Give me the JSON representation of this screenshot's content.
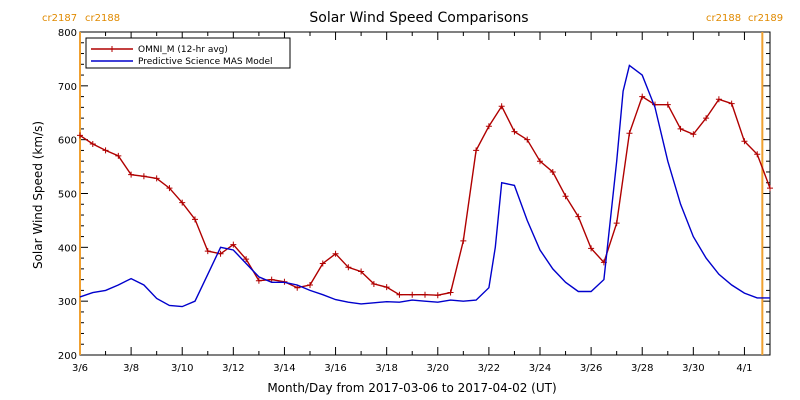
{
  "chart_data": {
    "type": "line",
    "title": "Solar Wind Speed Comparisons",
    "xlabel": "Month/Day from 2017-03-06 to 2017-04-02 (UT)",
    "ylabel": "Solar Wind Speed (km/s)",
    "xlim": [
      "2017-03-06",
      "2017-04-02"
    ],
    "ylim": [
      200,
      800
    ],
    "x_ticks": [
      "3/6",
      "3/8",
      "3/10",
      "3/12",
      "3/14",
      "3/16",
      "3/18",
      "3/20",
      "3/22",
      "3/24",
      "3/26",
      "3/28",
      "3/30",
      "4/1"
    ],
    "y_ticks": [
      200,
      300,
      400,
      500,
      600,
      700,
      800
    ],
    "legend_position": "top-left",
    "grid": false,
    "carrington_markers": [
      {
        "date": "2017-03-06",
        "label_left": "cr2187",
        "label_right": "cr2188",
        "side": "left"
      },
      {
        "date": "2017-04-01",
        "label_left": "cr2188",
        "label_right": "cr2189",
        "side": "right"
      }
    ],
    "series": [
      {
        "name": "OMNI_M (12-hr avg)",
        "color": "#b00000",
        "marker": "plus",
        "x": [
          "2017-03-06 00:00",
          "2017-03-06 12:00",
          "2017-03-07 00:00",
          "2017-03-07 12:00",
          "2017-03-08 00:00",
          "2017-03-08 12:00",
          "2017-03-09 00:00",
          "2017-03-09 12:00",
          "2017-03-10 00:00",
          "2017-03-10 12:00",
          "2017-03-11 00:00",
          "2017-03-11 12:00",
          "2017-03-12 00:00",
          "2017-03-12 12:00",
          "2017-03-13 00:00",
          "2017-03-13 12:00",
          "2017-03-14 00:00",
          "2017-03-14 12:00",
          "2017-03-15 00:00",
          "2017-03-15 12:00",
          "2017-03-16 00:00",
          "2017-03-16 12:00",
          "2017-03-17 00:00",
          "2017-03-17 12:00",
          "2017-03-18 00:00",
          "2017-03-18 12:00",
          "2017-03-19 00:00",
          "2017-03-19 12:00",
          "2017-03-20 00:00",
          "2017-03-20 12:00",
          "2017-03-21 00:00",
          "2017-03-21 12:00",
          "2017-03-22 00:00",
          "2017-03-22 12:00",
          "2017-03-23 00:00",
          "2017-03-23 12:00",
          "2017-03-24 00:00",
          "2017-03-24 12:00",
          "2017-03-25 00:00",
          "2017-03-25 12:00",
          "2017-03-26 00:00",
          "2017-03-26 12:00",
          "2017-03-27 00:00",
          "2017-03-27 12:00",
          "2017-03-28 00:00",
          "2017-03-28 12:00",
          "2017-03-29 00:00",
          "2017-03-29 12:00",
          "2017-03-30 00:00",
          "2017-03-30 12:00",
          "2017-03-31 00:00",
          "2017-03-31 12:00",
          "2017-04-01 00:00",
          "2017-04-01 12:00",
          "2017-04-02 00:00"
        ],
        "values": [
          608,
          592,
          580,
          570,
          535,
          532,
          528,
          510,
          483,
          452,
          393,
          388,
          405,
          378,
          338,
          340,
          336,
          325,
          330,
          370,
          388,
          363,
          355,
          332,
          326,
          312,
          312,
          312,
          311,
          316,
          412,
          580,
          625,
          662,
          615,
          600,
          560,
          540,
          495,
          457,
          398,
          372,
          445,
          612,
          680,
          665,
          665,
          620,
          610,
          640,
          675,
          667,
          597,
          573,
          510
        ]
      },
      {
        "name": "Predictive Science MAS Model",
        "color": "#0000cc",
        "marker": "none",
        "x": [
          "2017-03-06 00:00",
          "2017-03-06 12:00",
          "2017-03-07 00:00",
          "2017-03-07 12:00",
          "2017-03-08 00:00",
          "2017-03-08 12:00",
          "2017-03-09 00:00",
          "2017-03-09 12:00",
          "2017-03-10 00:00",
          "2017-03-10 12:00",
          "2017-03-11 00:00",
          "2017-03-11 12:00",
          "2017-03-12 00:00",
          "2017-03-12 12:00",
          "2017-03-13 00:00",
          "2017-03-13 12:00",
          "2017-03-14 00:00",
          "2017-03-14 12:00",
          "2017-03-15 00:00",
          "2017-03-15 12:00",
          "2017-03-16 00:00",
          "2017-03-16 12:00",
          "2017-03-17 00:00",
          "2017-03-17 12:00",
          "2017-03-18 00:00",
          "2017-03-18 12:00",
          "2017-03-19 00:00",
          "2017-03-19 12:00",
          "2017-03-20 00:00",
          "2017-03-20 12:00",
          "2017-03-21 00:00",
          "2017-03-21 12:00",
          "2017-03-22 00:00",
          "2017-03-22 06:00",
          "2017-03-22 12:00",
          "2017-03-23 00:00",
          "2017-03-23 12:00",
          "2017-03-24 00:00",
          "2017-03-24 12:00",
          "2017-03-25 00:00",
          "2017-03-25 12:00",
          "2017-03-26 00:00",
          "2017-03-26 12:00",
          "2017-03-27 00:00",
          "2017-03-27 06:00",
          "2017-03-27 12:00",
          "2017-03-28 00:00",
          "2017-03-28 12:00",
          "2017-03-29 00:00",
          "2017-03-29 12:00",
          "2017-03-30 00:00",
          "2017-03-30 12:00",
          "2017-03-31 00:00",
          "2017-03-31 12:00",
          "2017-04-01 00:00",
          "2017-04-01 12:00",
          "2017-04-02 00:00"
        ],
        "values": [
          308,
          316,
          320,
          330,
          342,
          330,
          305,
          292,
          290,
          300,
          350,
          400,
          395,
          370,
          345,
          335,
          335,
          330,
          320,
          312,
          303,
          298,
          295,
          297,
          299,
          298,
          302,
          300,
          298,
          302,
          300,
          302,
          325,
          400,
          520,
          515,
          450,
          395,
          360,
          335,
          318,
          318,
          340,
          560,
          690,
          738,
          720,
          660,
          560,
          480,
          420,
          380,
          350,
          330,
          315,
          306,
          306
        ]
      }
    ]
  }
}
